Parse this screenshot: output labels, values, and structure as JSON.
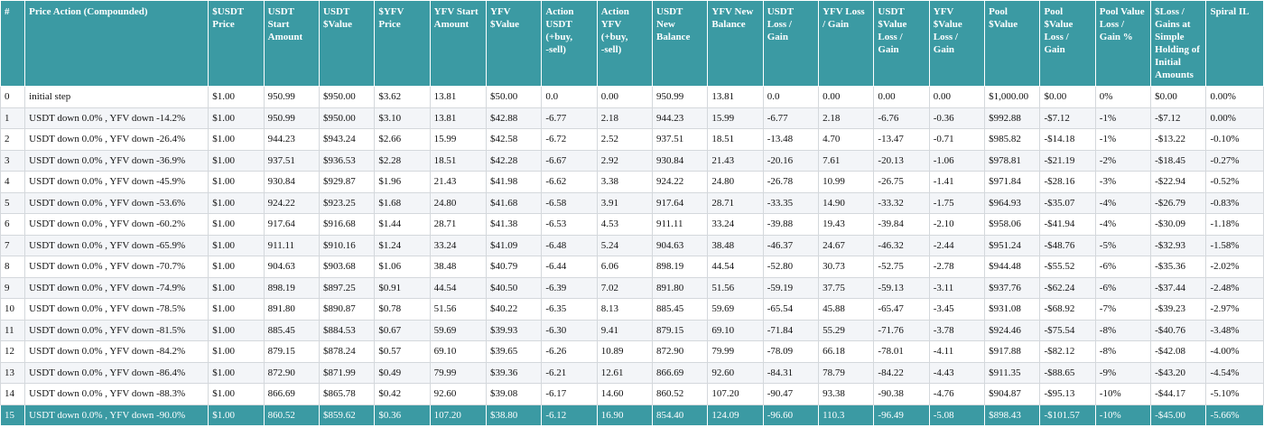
{
  "colors": {
    "header_bg": "#3b9aa3",
    "header_text": "#ffffff",
    "row_alt": "#f3f5f8",
    "final_row_bg": "#3b9aa3"
  },
  "table": {
    "headers": [
      "#",
      "Price Action (Compounded)",
      "$USDT\nPrice",
      "USDT\nStart\nAmount",
      "USDT\n$Value",
      "$YFV\nPrice",
      "YFV Start\nAmount",
      "YFV\n$Value",
      "Action\nUSDT\n(+buy,\n-sell)",
      "Action\nYFV\n(+buy,\n-sell)",
      "USDT\nNew\nBalance",
      "YFV New\nBalance",
      "USDT\nLoss /\nGain",
      "YFV Loss\n/ Gain",
      "USDT\n$Value\nLoss /\nGain",
      "YFV\n$Value\nLoss /\nGain",
      "Pool\n$Value",
      "Pool\n$Value\nLoss /\nGain",
      "Pool Value\nLoss /\nGain %",
      "$Loss /\nGains at\nSimple\nHolding of\nInitial\nAmounts",
      "Spiral IL"
    ],
    "rows": [
      [
        "0",
        "initial step",
        "$1.00",
        "950.99",
        "$950.00",
        "$3.62",
        "13.81",
        "$50.00",
        "0.0",
        "0.00",
        "950.99",
        "13.81",
        "0.0",
        "0.00",
        "0.00",
        "0.00",
        "$1,000.00",
        "$0.00",
        "0%",
        "$0.00",
        "0.00%"
      ],
      [
        "1",
        "USDT down 0.0% , YFV down -14.2%",
        "$1.00",
        "950.99",
        "$950.00",
        "$3.10",
        "13.81",
        "$42.88",
        "-6.77",
        "2.18",
        "944.23",
        "15.99",
        "-6.77",
        "2.18",
        "-6.76",
        "-0.36",
        "$992.88",
        "-$7.12",
        "-1%",
        "-$7.12",
        "0.00%"
      ],
      [
        "2",
        "USDT down 0.0% , YFV down -26.4%",
        "$1.00",
        "944.23",
        "$943.24",
        "$2.66",
        "15.99",
        "$42.58",
        "-6.72",
        "2.52",
        "937.51",
        "18.51",
        "-13.48",
        "4.70",
        "-13.47",
        "-0.71",
        "$985.82",
        "-$14.18",
        "-1%",
        "-$13.22",
        "-0.10%"
      ],
      [
        "3",
        "USDT down 0.0% , YFV down -36.9%",
        "$1.00",
        "937.51",
        "$936.53",
        "$2.28",
        "18.51",
        "$42.28",
        "-6.67",
        "2.92",
        "930.84",
        "21.43",
        "-20.16",
        "7.61",
        "-20.13",
        "-1.06",
        "$978.81",
        "-$21.19",
        "-2%",
        "-$18.45",
        "-0.27%"
      ],
      [
        "4",
        "USDT down 0.0% , YFV down -45.9%",
        "$1.00",
        "930.84",
        "$929.87",
        "$1.96",
        "21.43",
        "$41.98",
        "-6.62",
        "3.38",
        "924.22",
        "24.80",
        "-26.78",
        "10.99",
        "-26.75",
        "-1.41",
        "$971.84",
        "-$28.16",
        "-3%",
        "-$22.94",
        "-0.52%"
      ],
      [
        "5",
        "USDT down 0.0% , YFV down -53.6%",
        "$1.00",
        "924.22",
        "$923.25",
        "$1.68",
        "24.80",
        "$41.68",
        "-6.58",
        "3.91",
        "917.64",
        "28.71",
        "-33.35",
        "14.90",
        "-33.32",
        "-1.75",
        "$964.93",
        "-$35.07",
        "-4%",
        "-$26.79",
        "-0.83%"
      ],
      [
        "6",
        "USDT down 0.0% , YFV down -60.2%",
        "$1.00",
        "917.64",
        "$916.68",
        "$1.44",
        "28.71",
        "$41.38",
        "-6.53",
        "4.53",
        "911.11",
        "33.24",
        "-39.88",
        "19.43",
        "-39.84",
        "-2.10",
        "$958.06",
        "-$41.94",
        "-4%",
        "-$30.09",
        "-1.18%"
      ],
      [
        "7",
        "USDT down 0.0% , YFV down -65.9%",
        "$1.00",
        "911.11",
        "$910.16",
        "$1.24",
        "33.24",
        "$41.09",
        "-6.48",
        "5.24",
        "904.63",
        "38.48",
        "-46.37",
        "24.67",
        "-46.32",
        "-2.44",
        "$951.24",
        "-$48.76",
        "-5%",
        "-$32.93",
        "-1.58%"
      ],
      [
        "8",
        "USDT down 0.0% , YFV down -70.7%",
        "$1.00",
        "904.63",
        "$903.68",
        "$1.06",
        "38.48",
        "$40.79",
        "-6.44",
        "6.06",
        "898.19",
        "44.54",
        "-52.80",
        "30.73",
        "-52.75",
        "-2.78",
        "$944.48",
        "-$55.52",
        "-6%",
        "-$35.36",
        "-2.02%"
      ],
      [
        "9",
        "USDT down 0.0% , YFV down -74.9%",
        "$1.00",
        "898.19",
        "$897.25",
        "$0.91",
        "44.54",
        "$40.50",
        "-6.39",
        "7.02",
        "891.80",
        "51.56",
        "-59.19",
        "37.75",
        "-59.13",
        "-3.11",
        "$937.76",
        "-$62.24",
        "-6%",
        "-$37.44",
        "-2.48%"
      ],
      [
        "10",
        "USDT down 0.0% , YFV down -78.5%",
        "$1.00",
        "891.80",
        "$890.87",
        "$0.78",
        "51.56",
        "$40.22",
        "-6.35",
        "8.13",
        "885.45",
        "59.69",
        "-65.54",
        "45.88",
        "-65.47",
        "-3.45",
        "$931.08",
        "-$68.92",
        "-7%",
        "-$39.23",
        "-2.97%"
      ],
      [
        "11",
        "USDT down 0.0% , YFV down -81.5%",
        "$1.00",
        "885.45",
        "$884.53",
        "$0.67",
        "59.69",
        "$39.93",
        "-6.30",
        "9.41",
        "879.15",
        "69.10",
        "-71.84",
        "55.29",
        "-71.76",
        "-3.78",
        "$924.46",
        "-$75.54",
        "-8%",
        "-$40.76",
        "-3.48%"
      ],
      [
        "12",
        "USDT down 0.0% , YFV down -84.2%",
        "$1.00",
        "879.15",
        "$878.24",
        "$0.57",
        "69.10",
        "$39.65",
        "-6.26",
        "10.89",
        "872.90",
        "79.99",
        "-78.09",
        "66.18",
        "-78.01",
        "-4.11",
        "$917.88",
        "-$82.12",
        "-8%",
        "-$42.08",
        "-4.00%"
      ],
      [
        "13",
        "USDT down 0.0% , YFV down -86.4%",
        "$1.00",
        "872.90",
        "$871.99",
        "$0.49",
        "79.99",
        "$39.36",
        "-6.21",
        "12.61",
        "866.69",
        "92.60",
        "-84.31",
        "78.79",
        "-84.22",
        "-4.43",
        "$911.35",
        "-$88.65",
        "-9%",
        "-$43.20",
        "-4.54%"
      ],
      [
        "14",
        "USDT down 0.0% , YFV down -88.3%",
        "$1.00",
        "866.69",
        "$865.78",
        "$0.42",
        "92.60",
        "$39.08",
        "-6.17",
        "14.60",
        "860.52",
        "107.20",
        "-90.47",
        "93.38",
        "-90.38",
        "-4.76",
        "$904.87",
        "-$95.13",
        "-10%",
        "-$44.17",
        "-5.10%"
      ],
      [
        "15",
        "USDT down 0.0% , YFV down -90.0%",
        "$1.00",
        "860.52",
        "$859.62",
        "$0.36",
        "107.20",
        "$38.80",
        "-6.12",
        "16.90",
        "854.40",
        "124.09",
        "-96.60",
        "110.3",
        "-96.49",
        "-5.08",
        "$898.43",
        "-$101.57",
        "-10%",
        "-$45.00",
        "-5.66%"
      ]
    ]
  }
}
